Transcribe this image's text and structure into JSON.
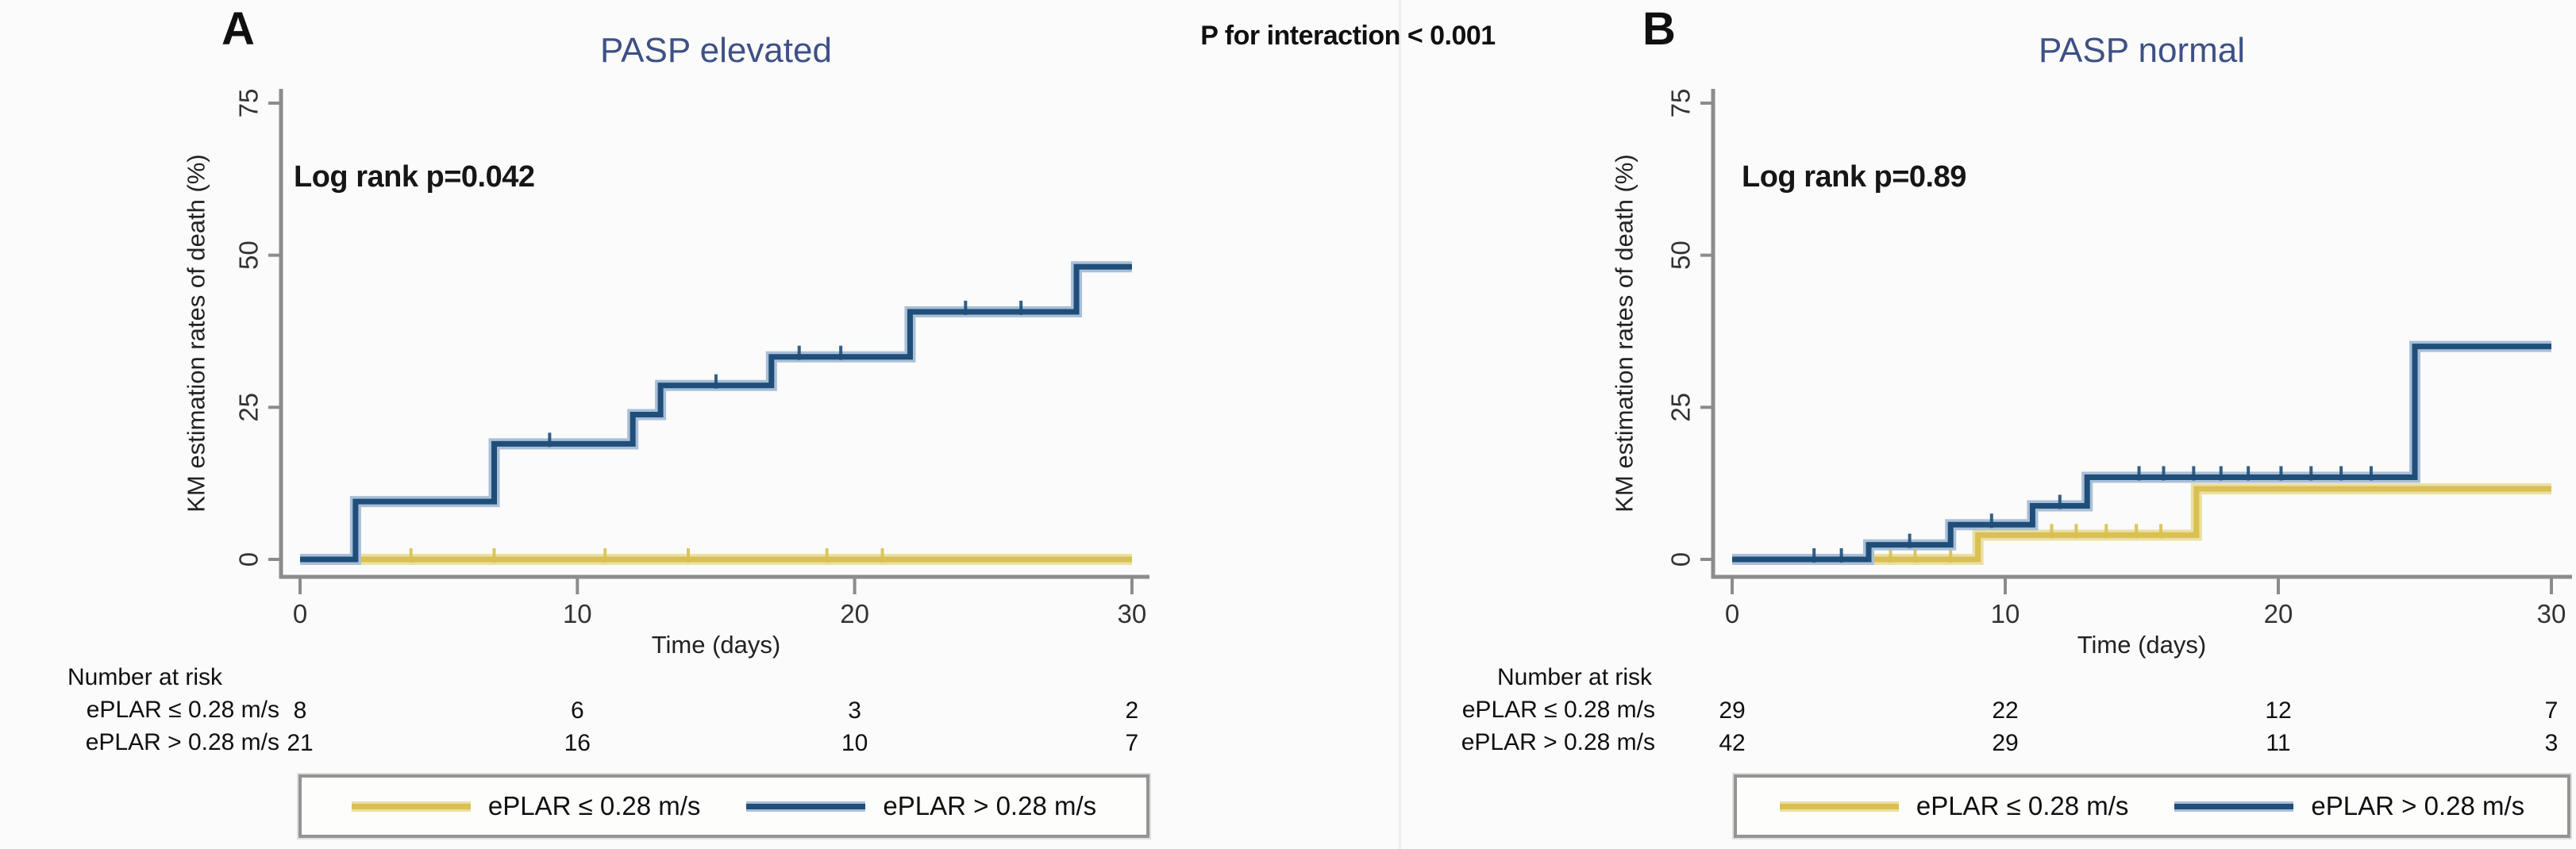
{
  "figure": {
    "interaction_label": "P for interaction < 0.001",
    "background": "#fafbfa",
    "axis_color": "#8c8c8c",
    "seam_color": "#edefed",
    "tick_text_color": "#333333"
  },
  "colors": {
    "blue": "#1F4E79",
    "blue_halo": "#A9BFD8",
    "gold": "#D9C050",
    "gold_halo": "#EBDFA4",
    "title_blue": "#3E5086"
  },
  "legend": {
    "entries": [
      {
        "label": "ePLAR ≤ 0.28 m/s",
        "color_key": "gold"
      },
      {
        "label": "ePLAR > 0.28 m/s",
        "color_key": "blue"
      }
    ],
    "position": "bottom"
  },
  "chart_data": [
    {
      "type": "line",
      "subtype": "kaplan-meier-step",
      "panel": "A",
      "title": "PASP elevated",
      "annotation": "Log rank p=0.042",
      "xlabel": "Time (days)",
      "ylabel": "KM estimation rates of death (%)",
      "xlim": [
        0,
        30
      ],
      "ylim": [
        0,
        80
      ],
      "xticks": [
        0,
        10,
        20,
        30
      ],
      "yticks": [
        0,
        25,
        50,
        75
      ],
      "grid": false,
      "series": [
        {
          "name": "ePLAR ≤ 0.28 m/s",
          "color_key": "gold",
          "steps": [
            [
              0,
              0
            ],
            [
              30,
              0
            ]
          ],
          "censor_marks": [
            [
              4,
              0
            ],
            [
              7,
              0
            ],
            [
              11,
              0
            ],
            [
              14,
              0
            ],
            [
              19,
              0
            ],
            [
              21,
              0
            ]
          ]
        },
        {
          "name": "ePLAR > 0.28 m/s",
          "color_key": "blue",
          "steps": [
            [
              0,
              0
            ],
            [
              2,
              9.5
            ],
            [
              7,
              19
            ],
            [
              12,
              23.8
            ],
            [
              13,
              28.6
            ],
            [
              17,
              33.3
            ],
            [
              22,
              40.7
            ],
            [
              28,
              48.1
            ],
            [
              30,
              48.1
            ]
          ],
          "censor_marks": [
            [
              9,
              19
            ],
            [
              15,
              28.6
            ],
            [
              18,
              33.3
            ],
            [
              19.5,
              33.3
            ],
            [
              24,
              40.7
            ],
            [
              26,
              40.7
            ]
          ]
        }
      ],
      "number_at_risk": {
        "heading": "Number at risk",
        "days": [
          0,
          10,
          20,
          30
        ],
        "rows": [
          {
            "label": "ePLAR ≤ 0.28 m/s",
            "counts": [
              "8",
              "6",
              "3",
              "2"
            ]
          },
          {
            "label": "ePLAR > 0.28 m/s",
            "counts": [
              "21",
              "16",
              "10",
              "7"
            ]
          }
        ]
      }
    },
    {
      "type": "line",
      "subtype": "kaplan-meier-step",
      "panel": "B",
      "title": "PASP normal",
      "annotation": "Log rank p=0.89",
      "xlabel": "Time (days)",
      "ylabel": "KM estimation rates of death (%)",
      "xlim": [
        0,
        30
      ],
      "ylim": [
        0,
        80
      ],
      "xticks": [
        0,
        10,
        20,
        30
      ],
      "yticks": [
        0,
        25,
        50,
        75
      ],
      "grid": false,
      "series": [
        {
          "name": "ePLAR ≤ 0.28 m/s",
          "color_key": "gold",
          "steps": [
            [
              0,
              0
            ],
            [
              9,
              4
            ],
            [
              17,
              11.6
            ],
            [
              30,
              11.6
            ]
          ],
          "censor_marks": [
            [
              5.8,
              0
            ],
            [
              6.7,
              0
            ],
            [
              8,
              0
            ],
            [
              11.7,
              4
            ],
            [
              12.6,
              4
            ],
            [
              13.7,
              4
            ],
            [
              14.8,
              4
            ],
            [
              15.7,
              4
            ]
          ]
        },
        {
          "name": "ePLAR > 0.28 m/s",
          "color_key": "blue",
          "steps": [
            [
              0,
              0
            ],
            [
              5,
              2.4
            ],
            [
              8,
              5.7
            ],
            [
              11,
              8.8
            ],
            [
              13,
              13.5
            ],
            [
              25,
              35
            ],
            [
              30,
              35
            ]
          ],
          "censor_marks": [
            [
              3,
              0
            ],
            [
              4,
              0
            ],
            [
              6.5,
              2.4
            ],
            [
              9.5,
              5.7
            ],
            [
              12,
              8.8
            ],
            [
              14.9,
              13.5
            ],
            [
              15.8,
              13.5
            ],
            [
              16.9,
              13.5
            ],
            [
              17.9,
              13.5
            ],
            [
              18.9,
              13.5
            ],
            [
              20.1,
              13.5
            ],
            [
              21.2,
              13.5
            ],
            [
              22.3,
              13.5
            ],
            [
              23.4,
              13.5
            ]
          ]
        }
      ],
      "number_at_risk": {
        "heading": "Number at risk",
        "days": [
          0,
          10,
          20,
          30
        ],
        "rows": [
          {
            "label": "ePLAR ≤ 0.28 m/s",
            "counts": [
              "29",
              "22",
              "12",
              "7"
            ]
          },
          {
            "label": "ePLAR > 0.28 m/s",
            "counts": [
              "42",
              "29",
              "11",
              "3"
            ]
          }
        ]
      }
    }
  ]
}
